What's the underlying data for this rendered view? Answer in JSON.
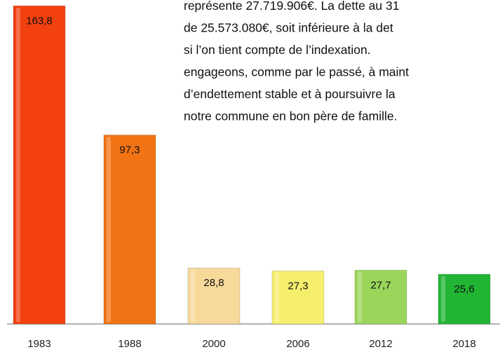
{
  "chart_data": {
    "type": "bar",
    "categories": [
      "1983",
      "1988",
      "2000",
      "2006",
      "2012",
      "2018"
    ],
    "values": [
      163.8,
      97.3,
      28.8,
      27.3,
      27.7,
      25.6
    ],
    "value_labels": [
      "163,8",
      "97,3",
      "28,8",
      "27,3",
      "27,7",
      "25,6"
    ],
    "colors": [
      "#f2410f",
      "#f27314",
      "#f7d99a",
      "#f6ef6e",
      "#9bd65b",
      "#22b533"
    ],
    "ylim": [
      0,
      165
    ],
    "annotations": [
      "représente 27.719.906€. La dette au 31",
      "de 25.573.080€, soit inférieure à la det",
      "si l’on tient compte de l’indexation.",
      "engageons, comme par le passé, à maint",
      "d’endettement stable et à poursuivre la",
      "notre commune en bon père de famille."
    ]
  }
}
